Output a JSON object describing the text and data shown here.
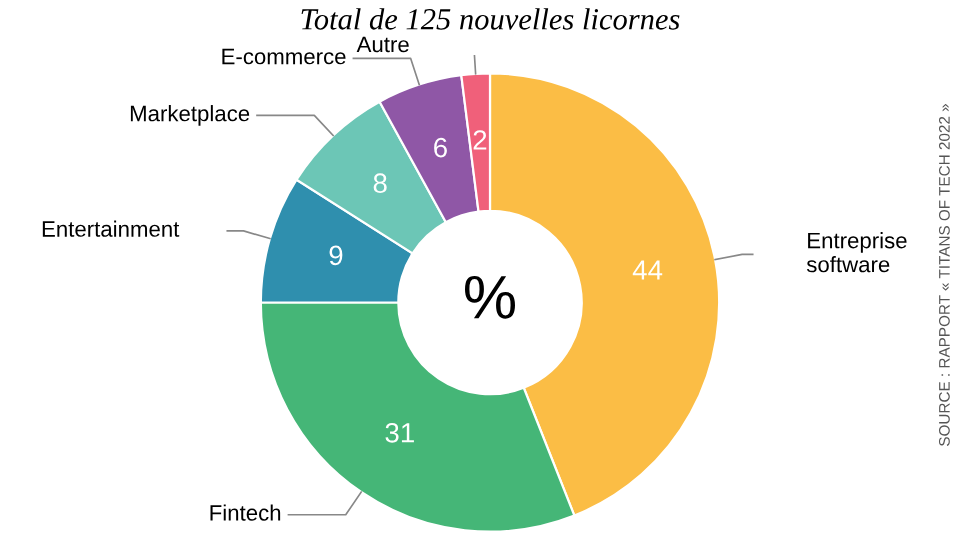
{
  "chart_data": {
    "type": "donut",
    "title": "Total de 125 nouvelles licornes",
    "categories": [
      "Entreprise software",
      "Fintech",
      "Entertainment",
      "Marketplace",
      "E-commerce",
      "Autre"
    ],
    "values": [
      44,
      31,
      9,
      8,
      6,
      2
    ],
    "colors": [
      "#fbbd45",
      "#45b677",
      "#2f8fae",
      "#6cc6b6",
      "#8f57a6",
      "#f0607a"
    ],
    "data_labels": true,
    "annotations": [
      "%",
      "SOURCE : RAPPORT « TITANS OF TECH 2022 »"
    ]
  }
}
